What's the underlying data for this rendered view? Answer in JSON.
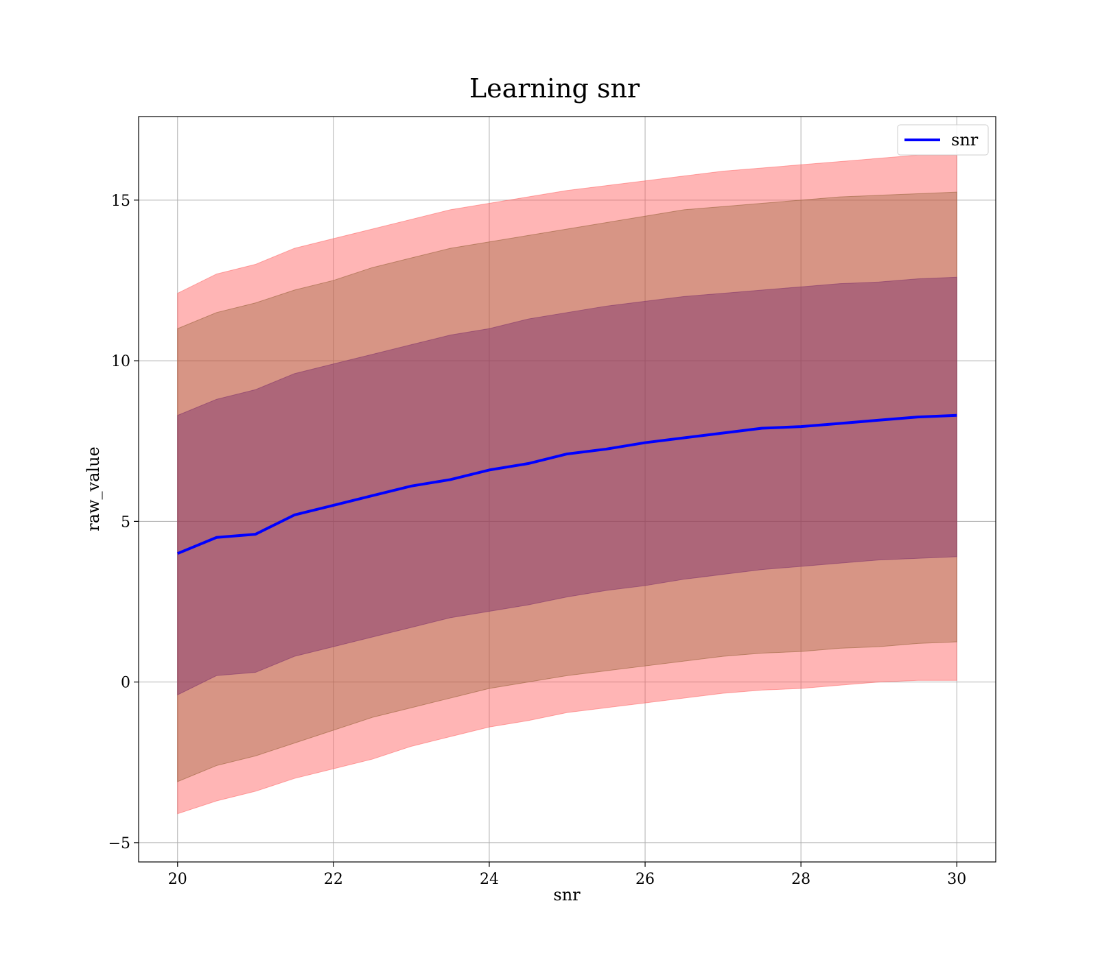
{
  "chart_data": {
    "type": "line",
    "title": "Learning snr",
    "xlabel": "snr",
    "ylabel": "raw_value",
    "xlim": [
      19.5,
      30.5
    ],
    "ylim": [
      -5.6,
      17.6
    ],
    "xticks": [
      20,
      22,
      24,
      26,
      28,
      30
    ],
    "yticks": [
      -5,
      0,
      5,
      10,
      15
    ],
    "xtick_labels": [
      "20",
      "22",
      "24",
      "26",
      "28",
      "30"
    ],
    "ytick_labels": [
      "−5",
      "0",
      "5",
      "10",
      "15"
    ],
    "grid": true,
    "legend": {
      "position": "top-right",
      "entries": [
        "snr"
      ]
    },
    "x": [
      20.0,
      20.5,
      21.0,
      21.5,
      22.0,
      22.5,
      23.0,
      23.5,
      24.0,
      24.5,
      25.0,
      25.5,
      26.0,
      26.5,
      27.0,
      27.5,
      28.0,
      28.5,
      29.0,
      29.5,
      30.0
    ],
    "series": [
      {
        "name": "snr",
        "color": "#0000ff",
        "values": [
          4.0,
          4.5,
          4.6,
          5.2,
          5.5,
          5.8,
          6.1,
          6.3,
          6.6,
          6.8,
          7.1,
          7.25,
          7.45,
          7.6,
          7.75,
          7.9,
          7.95,
          8.05,
          8.15,
          8.25,
          8.3
        ]
      }
    ],
    "bands": [
      {
        "color": "#ff5a5a",
        "opacity": 0.45,
        "upper": [
          12.1,
          12.7,
          13.0,
          13.5,
          13.8,
          14.1,
          14.4,
          14.7,
          14.9,
          15.1,
          15.3,
          15.45,
          15.6,
          15.75,
          15.9,
          16.0,
          16.1,
          16.2,
          16.3,
          16.4,
          16.4
        ],
        "lower": [
          -4.1,
          -3.7,
          -3.4,
          -3.0,
          -2.7,
          -2.4,
          -2.0,
          -1.7,
          -1.4,
          -1.2,
          -0.95,
          -0.8,
          -0.65,
          -0.5,
          -0.35,
          -0.25,
          -0.2,
          -0.1,
          0.0,
          0.05,
          0.05
        ]
      },
      {
        "color": "#8b5a2b",
        "opacity": 0.35,
        "upper": [
          11.0,
          11.5,
          11.8,
          12.2,
          12.5,
          12.9,
          13.2,
          13.5,
          13.7,
          13.9,
          14.1,
          14.3,
          14.5,
          14.7,
          14.8,
          14.9,
          15.0,
          15.1,
          15.15,
          15.2,
          15.25
        ],
        "lower": [
          -3.1,
          -2.6,
          -2.3,
          -1.9,
          -1.5,
          -1.1,
          -0.8,
          -0.5,
          -0.2,
          0.0,
          0.2,
          0.35,
          0.5,
          0.65,
          0.8,
          0.9,
          0.95,
          1.05,
          1.1,
          1.2,
          1.25
        ]
      },
      {
        "color": "#7a2c6a",
        "opacity": 0.45,
        "upper": [
          8.3,
          8.8,
          9.1,
          9.6,
          9.9,
          10.2,
          10.5,
          10.8,
          11.0,
          11.3,
          11.5,
          11.7,
          11.85,
          12.0,
          12.1,
          12.2,
          12.3,
          12.4,
          12.45,
          12.55,
          12.6
        ],
        "lower": [
          -0.4,
          0.2,
          0.3,
          0.8,
          1.1,
          1.4,
          1.7,
          2.0,
          2.2,
          2.4,
          2.65,
          2.85,
          3.0,
          3.2,
          3.35,
          3.5,
          3.6,
          3.7,
          3.8,
          3.85,
          3.9
        ]
      }
    ]
  }
}
